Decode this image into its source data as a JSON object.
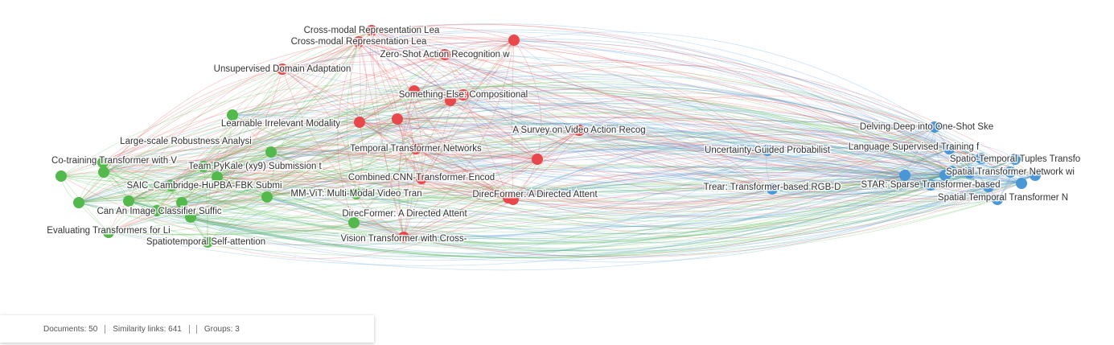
{
  "groups": [
    {
      "color": "#e8474b"
    },
    {
      "color": "#53b94c"
    },
    {
      "color": "#4a97d8"
    }
  ],
  "nodes": [
    {
      "label": "Cross-modal Representation Lea",
      "group": 0
    },
    {
      "label": "Cross-modal Representation Lea",
      "group": 0
    },
    {
      "label": "Zero-Shot Action Recognition w",
      "group": 0
    },
    {
      "label": "Unsupervised Domain Adaptation",
      "group": 0
    },
    {
      "label": "Something-Else: Compositional",
      "group": 0
    },
    {
      "label": "Learnable Irrelevant Modality",
      "group": 0
    },
    {
      "label": "A Survey on Video Action Recog",
      "group": 0
    },
    {
      "label": "Temporal Transformer Networks",
      "group": 0
    },
    {
      "label": "Combined CNN-Transformer Encod",
      "group": 0
    },
    {
      "label": "MM-ViT: Multi-Modal Video Tran",
      "group": 1
    },
    {
      "label": "DirecFormer: A Directed Attent",
      "group": 0
    },
    {
      "label": "Vision Transformer with Cross-",
      "group": 0
    },
    {
      "label": "Large-scale Robustness Analysi",
      "group": 1
    },
    {
      "label": "Co-training Transformer with V",
      "group": 1
    },
    {
      "label": "Team PyKale (xy9) Submission t",
      "group": 1
    },
    {
      "label": "SAIC_Cambridge-HuPBA-FBK Submi",
      "group": 1
    },
    {
      "label": "Can An Image Classifier Suffic",
      "group": 1
    },
    {
      "label": "Evaluating Transformers for Li",
      "group": 1
    },
    {
      "label": "Spatiotemporal Self-attention",
      "group": 1
    },
    {
      "label": "DirecFormer: A Directed Attent",
      "group": 1
    },
    {
      "label": "Delving Deep into One-Shot Ske",
      "group": 2
    },
    {
      "label": "Uncertainty-Guided Probabilist",
      "group": 2
    },
    {
      "label": "Language Supervised Training f",
      "group": 2
    },
    {
      "label": "Spatio-Temporal Tuples Transfo",
      "group": 2
    },
    {
      "label": "Spatial Transformer Network wi",
      "group": 2
    },
    {
      "label": "Trear: Transformer-based RGB-D",
      "group": 2
    },
    {
      "label": "STAR: Sparse Transformer-based",
      "group": 2
    },
    {
      "label": "Spatial Temporal Transformer N",
      "group": 2
    }
  ],
  "status": {
    "documents": "Documents: 50",
    "links": "Similarity links: 641",
    "groups": "Groups: 3"
  }
}
